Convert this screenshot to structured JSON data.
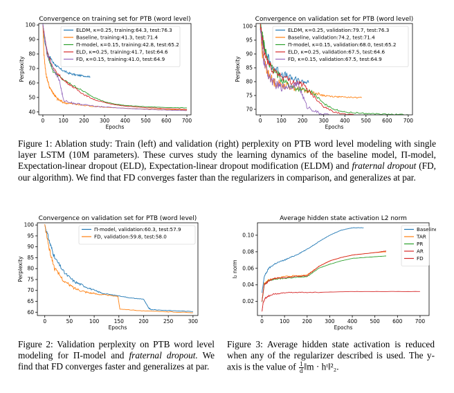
{
  "charts": [
    {
      "id": "train",
      "title": "Convergence on training set for PTB (word level)",
      "xlabel": "Epochs",
      "ylabel": "Perplexity",
      "xticks": [
        0,
        100,
        200,
        300,
        400,
        500,
        600,
        700
      ],
      "yticks": [
        40,
        50,
        60,
        70,
        80,
        90,
        100
      ],
      "yticklabels": [
        "40",
        "50",
        "60",
        "70",
        "80",
        "90",
        "100"
      ],
      "legend": [
        "ELDM, κ=0.25, training:64.3, test:76.3",
        "Baseline, training:41.3, test:71.4",
        "Π-model, κ=0.15, training:42.8, test:65.2",
        "ELD, κ=0.25, training:41.7, test:64.6",
        "FD, κ=0.15, training:41.0, test:64.9"
      ]
    },
    {
      "id": "val",
      "title": "Convergence on validation set for PTB (word level)",
      "xlabel": "Epochs",
      "ylabel": "Perplexity",
      "xticks": [
        0,
        100,
        200,
        300,
        400,
        500,
        600,
        700
      ],
      "yticks": [
        70,
        75,
        80,
        85,
        90,
        95,
        100
      ],
      "yticklabels": [
        "70",
        "75",
        "80",
        "85",
        "90",
        "95",
        "100"
      ],
      "legend": [
        "ELDM, κ=0.25, validation:79.7, test:76.3",
        "Baseline, validation:74.2, test:71.4",
        "Π-model, κ=0.15, validation:68.0, test:65.2",
        "ELD, κ=0.25, validation:67.5, test:64.6",
        "FD, κ=0.15, validation:67.5, test:64.9"
      ]
    },
    {
      "id": "val2",
      "title": "Convergence on validation set for PTB (word level)",
      "xlabel": "Epochs",
      "ylabel": "Perplexity",
      "xticks": [
        0,
        50,
        100,
        150,
        200,
        250,
        300
      ],
      "yticks": [
        60,
        65,
        70,
        75,
        80,
        85,
        90,
        95,
        100
      ],
      "yticklabels": [
        "60",
        "65",
        "70",
        "75",
        "80",
        "85",
        "90",
        "95",
        "100"
      ],
      "legend": [
        "Π-model, validation:60.3, test:57.9",
        "FD, validation:59.8, test:58.0"
      ]
    },
    {
      "id": "act",
      "title": "Average hidden state activation L2 norm",
      "xlabel": "Epochs",
      "ylabel": "l₂ norm",
      "xticks": [
        0,
        100,
        200,
        300,
        400,
        500,
        600,
        700
      ],
      "yticks": [
        0.02,
        0.04,
        0.06,
        0.08,
        0.1
      ],
      "yticklabels": [
        "0.02",
        "0.04",
        "0.06",
        "0.08",
        "0.10"
      ],
      "legend": [
        "Baseline",
        "TAR",
        "PR",
        "AR",
        "FD"
      ]
    }
  ],
  "chart_data": [
    {
      "type": "line",
      "title": "Convergence on training set for PTB (word level)",
      "xlabel": "Epochs",
      "ylabel": "Perplexity",
      "xlim": [
        -20,
        720
      ],
      "ylim": [
        38,
        101
      ],
      "series": [
        {
          "name": "ELDM, κ=0.25, training:64.3, test:76.3",
          "color": "#1f77b4",
          "x": [
            0,
            10,
            25,
            50,
            80,
            120,
            160,
            200,
            230
          ],
          "y": [
            100,
            88,
            80,
            74,
            70,
            67,
            65.5,
            64.8,
            64.3
          ]
        },
        {
          "name": "Baseline, training:41.3, test:71.4",
          "color": "#ff7f0e",
          "x": [
            0,
            5,
            15,
            30,
            50,
            70,
            100,
            150,
            200,
            300,
            400,
            500,
            600,
            700
          ],
          "y": [
            100,
            80,
            66,
            58,
            53,
            49,
            46.5,
            45.5,
            44.5,
            43.3,
            42.5,
            42,
            41.6,
            41.3
          ]
        },
        {
          "name": "Π-model, κ=0.15, training:42.8, test:65.2",
          "color": "#2ca02c",
          "x": [
            0,
            20,
            50,
            100,
            150,
            200,
            250,
            300,
            350,
            400,
            500,
            600,
            700
          ],
          "y": [
            100,
            80,
            68,
            62,
            58,
            54,
            50,
            47,
            45.5,
            44.5,
            43.6,
            43.1,
            42.8
          ]
        },
        {
          "name": "ELD, κ=0.25, training:41.7, test:64.6",
          "color": "#d62728",
          "x": [
            0,
            20,
            50,
            100,
            150,
            200,
            250,
            300,
            350,
            400,
            500,
            600,
            700
          ],
          "y": [
            100,
            82,
            70,
            62,
            57,
            52,
            48.5,
            46.5,
            45,
            44,
            43,
            42.3,
            41.7
          ]
        },
        {
          "name": "FD, κ=0.15, training:41.0, test:64.9",
          "color": "#9467bd",
          "x": [
            0,
            20,
            50,
            80,
            100,
            150,
            200,
            250,
            300,
            400,
            500,
            600,
            700
          ],
          "y": [
            100,
            80,
            70,
            62,
            48,
            46,
            45,
            44,
            43.5,
            42.5,
            41.8,
            41.3,
            41.0
          ]
        }
      ]
    },
    {
      "type": "line",
      "title": "Convergence on validation set for PTB (word level)",
      "xlabel": "Epochs",
      "ylabel": "Perplexity",
      "xlim": [
        -20,
        720
      ],
      "ylim": [
        68,
        101
      ],
      "series": [
        {
          "name": "ELDM, κ=0.25, validation:79.7, test:76.3",
          "color": "#1f77b4",
          "x": [
            0,
            20,
            50,
            100,
            150,
            200,
            230
          ],
          "y": [
            100,
            92,
            86,
            83,
            81,
            80,
            79.7
          ]
        },
        {
          "name": "Baseline, validation:74.2, test:71.4",
          "color": "#ff7f0e",
          "x": [
            0,
            10,
            30,
            60,
            100,
            150,
            200,
            250,
            300,
            350,
            400,
            480
          ],
          "y": [
            100,
            90,
            84,
            80,
            79,
            78,
            77,
            76,
            75,
            74.6,
            74.4,
            74.2
          ]
        },
        {
          "name": "Π-model, κ=0.15, validation:68.0, test:65.2",
          "color": "#2ca02c",
          "x": [
            0,
            20,
            50,
            100,
            150,
            200,
            250,
            300,
            350,
            400,
            500,
            600,
            700
          ],
          "y": [
            100,
            92,
            85,
            81,
            78,
            77,
            76,
            72,
            70,
            69,
            68.5,
            68.2,
            68.0
          ]
        },
        {
          "name": "ELD, κ=0.25, validation:67.5, test:64.6",
          "color": "#d62728",
          "x": [
            0,
            20,
            50,
            100,
            150,
            200,
            250,
            300,
            350,
            400,
            500,
            600,
            700
          ],
          "y": [
            100,
            90,
            85,
            82,
            80,
            79,
            75,
            71,
            69,
            68.2,
            67.8,
            67.6,
            67.5
          ]
        },
        {
          "name": "FD, κ=0.15, validation:67.5, test:64.9",
          "color": "#9467bd",
          "x": [
            0,
            15,
            40,
            70,
            100,
            140,
            180,
            220,
            280,
            350,
            450
          ],
          "y": [
            100,
            88,
            82,
            79,
            78,
            78.5,
            79,
            71,
            68.5,
            67.8,
            67.5
          ]
        }
      ]
    },
    {
      "type": "line",
      "title": "Convergence on validation set for PTB (word level)",
      "xlabel": "Epochs",
      "ylabel": "Perplexity",
      "xlim": [
        -15,
        310
      ],
      "ylim": [
        58.5,
        101
      ],
      "series": [
        {
          "name": "Π-model, validation:60.3, test:57.9",
          "color": "#1f77b4",
          "x": [
            0,
            10,
            20,
            40,
            60,
            80,
            100,
            120,
            150,
            175,
            200,
            210,
            215,
            250,
            300
          ],
          "y": [
            100,
            92,
            85,
            78,
            74,
            72,
            70,
            68.5,
            67.5,
            66.5,
            66,
            62,
            61.2,
            60.8,
            60.3
          ]
        },
        {
          "name": "FD, validation:59.8, test:58.0",
          "color": "#ff7f0e",
          "x": [
            0,
            10,
            20,
            40,
            60,
            80,
            100,
            120,
            148,
            152,
            200,
            250,
            300
          ],
          "y": [
            100,
            88,
            80,
            74,
            71,
            69.5,
            68.5,
            68,
            67.2,
            61.5,
            60.6,
            60.2,
            59.8
          ]
        }
      ]
    },
    {
      "type": "line",
      "title": "Average hidden state activation L2 norm",
      "xlabel": "Epochs",
      "ylabel": "l₂ norm",
      "xlim": [
        -20,
        740
      ],
      "ylim": [
        0.003,
        0.115
      ],
      "series": [
        {
          "name": "Baseline",
          "color": "#1f77b4",
          "x": [
            0,
            10,
            30,
            60,
            100,
            150,
            200,
            250,
            300,
            350,
            400,
            450
          ],
          "y": [
            0.03,
            0.05,
            0.06,
            0.066,
            0.07,
            0.076,
            0.083,
            0.092,
            0.1,
            0.106,
            0.109,
            0.109
          ]
        },
        {
          "name": "TAR",
          "color": "#ff7f0e",
          "x": [
            0,
            10,
            30,
            60,
            100,
            150,
            200,
            250,
            300,
            350,
            400,
            500,
            550
          ],
          "y": [
            0.02,
            0.042,
            0.046,
            0.048,
            0.05,
            0.051,
            0.052,
            0.062,
            0.069,
            0.073,
            0.076,
            0.079,
            0.08
          ]
        },
        {
          "name": "PR",
          "color": "#2ca02c",
          "x": [
            0,
            10,
            30,
            60,
            100,
            150,
            200,
            250,
            300,
            350,
            400,
            500,
            550
          ],
          "y": [
            0.02,
            0.04,
            0.045,
            0.047,
            0.048,
            0.049,
            0.05,
            0.06,
            0.065,
            0.069,
            0.072,
            0.074,
            0.075
          ]
        },
        {
          "name": "AR",
          "color": "#d62728",
          "x": [
            0,
            10,
            30,
            60,
            100,
            150,
            200,
            250,
            300,
            350,
            400,
            500,
            550
          ],
          "y": [
            0.02,
            0.04,
            0.045,
            0.048,
            0.049,
            0.05,
            0.051,
            0.062,
            0.069,
            0.073,
            0.076,
            0.079,
            0.081
          ]
        },
        {
          "name": "FD",
          "color": "#d62728",
          "x": [
            0,
            5,
            15,
            40,
            80,
            150,
            250,
            400,
            550,
            700
          ],
          "y": [
            0.008,
            0.018,
            0.024,
            0.028,
            0.03,
            0.031,
            0.031,
            0.032,
            0.032,
            0.032
          ]
        }
      ]
    }
  ],
  "captions": {
    "fig1_label": "Figure 1:",
    "fig1_text_a": "Ablation study: Train (left) and validation (right) perplexity on PTB word level modeling with single layer LSTM (10M parameters). These curves study the learning dynamics of the baseline model, Π-model, Expectation-linear dropout (ELD), Expectation-linear dropout modification (ELDM) and",
    "fig1_em": "fraternal dropout",
    "fig1_text_b": "(FD, our algorithm). We find that FD converges faster than the regularizers in comparison, and generalizes at par.",
    "fig2_label": "Figure 2:",
    "fig2_text_a": "Validation perplexity on PTB word level modeling for Π-model and",
    "fig2_em": "fraternal dropout.",
    "fig2_text_b": "We find that FD converges faster and generalizes at par.",
    "fig3_label": "Figure 3:",
    "fig3_text_a": "Average hidden state activation is reduced when any of the regularizer described is used. The y-axis is the value of",
    "fig3_frac_num": "1",
    "fig3_frac_den": "d",
    "fig3_formula": "‖m · hᵗ‖²₂."
  }
}
